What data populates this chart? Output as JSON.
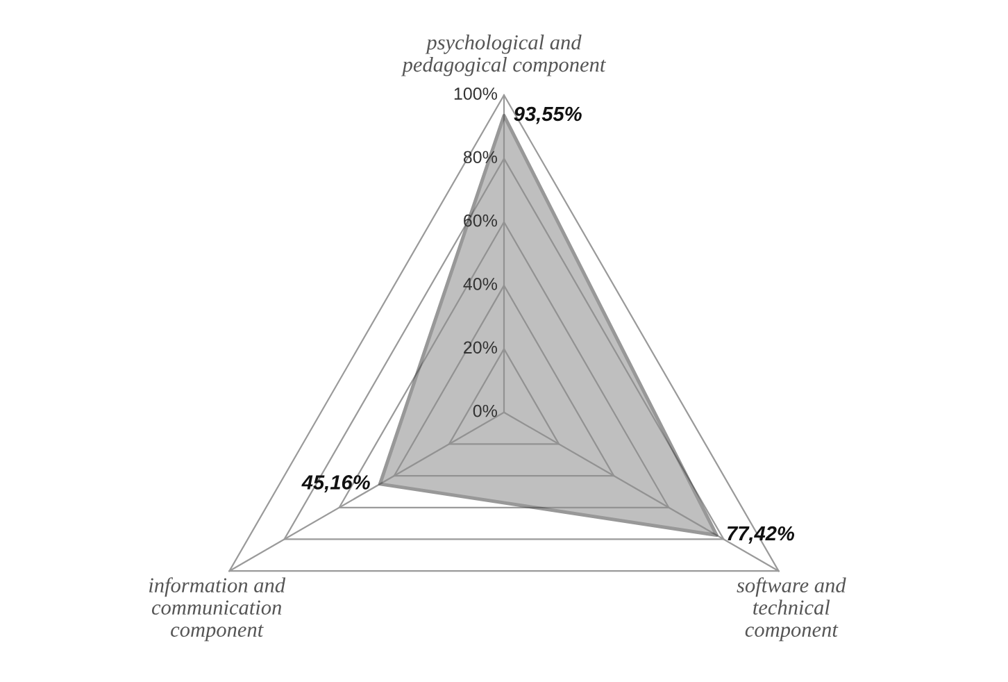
{
  "chart_data": {
    "type": "radar",
    "categories": [
      "psychological and\npedagogical component",
      "software and\ntechnical\ncomponent",
      "information and\ncommunication\ncomponent"
    ],
    "series": [
      {
        "color": "#8c8c8c",
        "values": [
          93.55,
          77.42,
          45.16
        ],
        "value_labels": [
          "93,55%",
          "77,42%",
          "45,16%"
        ]
      }
    ],
    "ylim": [
      0,
      100
    ],
    "yticks": [
      {
        "value": 0,
        "label": "0%"
      },
      {
        "value": 20,
        "label": "20%"
      },
      {
        "value": 40,
        "label": "40%"
      },
      {
        "value": 60,
        "label": "60%"
      },
      {
        "value": 80,
        "label": "80%"
      },
      {
        "value": 100,
        "label": "100%"
      }
    ],
    "grid": true
  }
}
